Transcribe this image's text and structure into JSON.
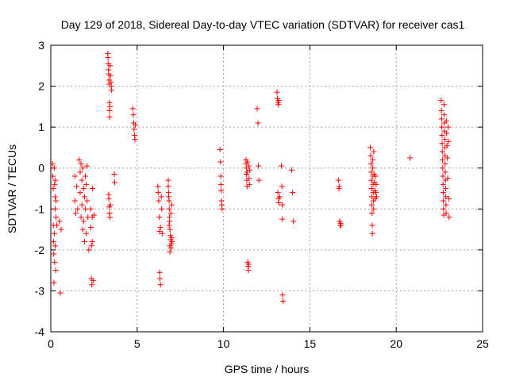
{
  "chart_data": {
    "type": "scatter",
    "title": "Day 129 of 2018, Sidereal Day-to-day VTEC variation (SDTVAR) for receiver cas1",
    "xlabel": "GPS time / hours",
    "ylabel": "SDTVAR / TECUs",
    "xlim": [
      0,
      25
    ],
    "ylim": [
      -4,
      3
    ],
    "xticks": [
      0,
      5,
      10,
      15,
      20,
      25
    ],
    "yticks": [
      -4,
      -3,
      -2,
      -1,
      0,
      1,
      2,
      3
    ],
    "grid": true,
    "marker": "+",
    "color": "#ff0000",
    "series": [
      {
        "name": "SDTVAR",
        "points": [
          [
            0.1,
            0.1
          ],
          [
            0.12,
            -0.2
          ],
          [
            0.14,
            -0.5
          ],
          [
            0.15,
            -1.4
          ],
          [
            0.15,
            -1.8
          ],
          [
            0.17,
            -2.1
          ],
          [
            0.18,
            -2.8
          ],
          [
            0.2,
            -1.6
          ],
          [
            0.2,
            0.0
          ],
          [
            0.22,
            -0.4
          ],
          [
            0.22,
            -2.3
          ],
          [
            0.25,
            -0.7
          ],
          [
            0.25,
            -1.0
          ],
          [
            0.25,
            -1.9
          ],
          [
            0.27,
            -0.3
          ],
          [
            0.28,
            -2.5
          ],
          [
            0.3,
            -0.8
          ],
          [
            0.3,
            -1.2
          ],
          [
            0.35,
            -1.4
          ],
          [
            0.5,
            -1.3
          ],
          [
            0.55,
            -3.05
          ],
          [
            0.6,
            -1.5
          ],
          [
            1.4,
            -0.2
          ],
          [
            1.4,
            -0.8
          ],
          [
            1.45,
            -1.1
          ],
          [
            1.5,
            -0.45
          ],
          [
            1.55,
            -1.0
          ],
          [
            1.65,
            0.2
          ],
          [
            1.7,
            -0.1
          ],
          [
            1.7,
            -0.6
          ],
          [
            1.75,
            -1.2
          ],
          [
            1.75,
            0.1
          ],
          [
            1.8,
            -0.3
          ],
          [
            1.8,
            -0.9
          ],
          [
            1.85,
            -1.5
          ],
          [
            1.85,
            0.0
          ],
          [
            1.9,
            -0.5
          ],
          [
            1.9,
            -1.3
          ],
          [
            1.95,
            -0.7
          ],
          [
            1.95,
            -1.8
          ],
          [
            2.0,
            -0.2
          ],
          [
            2.0,
            -1.0
          ],
          [
            2.05,
            -0.4
          ],
          [
            2.05,
            -1.6
          ],
          [
            2.1,
            0.05
          ],
          [
            2.1,
            -0.8
          ],
          [
            2.15,
            -1.2
          ],
          [
            2.2,
            -2.0
          ],
          [
            2.3,
            -1.0
          ],
          [
            2.32,
            -1.45
          ],
          [
            2.35,
            -1.9
          ],
          [
            2.35,
            -2.7
          ],
          [
            2.38,
            -2.85
          ],
          [
            2.4,
            -1.8
          ],
          [
            2.4,
            -1.2
          ],
          [
            2.42,
            -0.5
          ],
          [
            2.45,
            -2.75
          ],
          [
            2.5,
            -1.15
          ],
          [
            3.3,
            2.8
          ],
          [
            3.31,
            2.7
          ],
          [
            3.32,
            2.55
          ],
          [
            3.34,
            2.4
          ],
          [
            3.35,
            2.3
          ],
          [
            3.36,
            2.15
          ],
          [
            3.38,
            2.05
          ],
          [
            3.4,
            1.6
          ],
          [
            3.4,
            1.4
          ],
          [
            3.4,
            1.25
          ],
          [
            3.42,
            1.5
          ],
          [
            3.44,
            2.5
          ],
          [
            3.45,
            2.25
          ],
          [
            3.48,
            2.1
          ],
          [
            3.5,
            2.0
          ],
          [
            3.52,
            1.9
          ],
          [
            3.35,
            -0.65
          ],
          [
            3.36,
            -0.75
          ],
          [
            3.38,
            -0.95
          ],
          [
            3.4,
            -1.1
          ],
          [
            3.42,
            -1.2
          ],
          [
            3.45,
            -0.9
          ],
          [
            3.68,
            -0.15
          ],
          [
            3.7,
            -0.35
          ],
          [
            4.75,
            1.45
          ],
          [
            4.78,
            1.3
          ],
          [
            4.8,
            1.1
          ],
          [
            4.82,
            0.95
          ],
          [
            4.85,
            0.8
          ],
          [
            4.87,
            0.7
          ],
          [
            4.9,
            1.05
          ],
          [
            6.2,
            -0.45
          ],
          [
            6.22,
            -0.6
          ],
          [
            6.25,
            -0.8
          ],
          [
            6.28,
            -1.2
          ],
          [
            6.3,
            -1.55
          ],
          [
            6.3,
            -2.55
          ],
          [
            6.32,
            -2.7
          ],
          [
            6.35,
            -2.85
          ],
          [
            6.35,
            -1.45
          ],
          [
            6.4,
            -0.7
          ],
          [
            6.42,
            -1.0
          ],
          [
            6.45,
            -1.6
          ],
          [
            6.8,
            -0.3
          ],
          [
            6.8,
            -0.45
          ],
          [
            6.82,
            -0.6
          ],
          [
            6.83,
            -0.7
          ],
          [
            6.85,
            -0.8
          ],
          [
            6.85,
            -1.4
          ],
          [
            6.86,
            -1.0
          ],
          [
            6.87,
            -1.2
          ],
          [
            6.88,
            -1.3
          ],
          [
            6.89,
            -1.9
          ],
          [
            6.9,
            -1.5
          ],
          [
            6.9,
            -2.05
          ],
          [
            6.92,
            -1.65
          ],
          [
            6.94,
            -1.75
          ],
          [
            6.95,
            -1.1
          ],
          [
            6.96,
            -1.95
          ],
          [
            6.98,
            -1.85
          ],
          [
            7.0,
            -0.9
          ],
          [
            7.0,
            -1.7
          ],
          [
            7.02,
            -1.8
          ],
          [
            9.8,
            0.45
          ],
          [
            9.82,
            0.15
          ],
          [
            9.84,
            -0.2
          ],
          [
            9.85,
            -0.4
          ],
          [
            9.86,
            -0.55
          ],
          [
            9.88,
            -0.8
          ],
          [
            9.9,
            -0.9
          ],
          [
            9.92,
            -1.0
          ],
          [
            11.3,
            0.2
          ],
          [
            11.31,
            0.1
          ],
          [
            11.32,
            0.0
          ],
          [
            11.33,
            -0.15
          ],
          [
            11.35,
            -0.3
          ],
          [
            11.36,
            -0.45
          ],
          [
            11.37,
            -0.1
          ],
          [
            11.38,
            0.15
          ],
          [
            11.4,
            -2.3
          ],
          [
            11.42,
            -2.4
          ],
          [
            11.44,
            -2.5
          ],
          [
            11.45,
            -2.35
          ],
          [
            11.46,
            0.05
          ],
          [
            11.48,
            -0.25
          ],
          [
            11.5,
            -0.4
          ],
          [
            11.52,
            -0.05
          ],
          [
            11.95,
            1.45
          ],
          [
            12.0,
            1.1
          ],
          [
            12.02,
            0.05
          ],
          [
            12.05,
            -0.3
          ],
          [
            13.1,
            1.85
          ],
          [
            13.12,
            1.7
          ],
          [
            13.15,
            1.6
          ],
          [
            13.18,
            1.55
          ],
          [
            13.2,
            1.65
          ],
          [
            13.15,
            -0.6
          ],
          [
            13.18,
            -0.75
          ],
          [
            13.2,
            -0.85
          ],
          [
            13.25,
            -0.7
          ],
          [
            13.35,
            0.05
          ],
          [
            13.38,
            -0.45
          ],
          [
            13.4,
            -0.9
          ],
          [
            13.4,
            -1.25
          ],
          [
            13.42,
            -3.1
          ],
          [
            13.45,
            -3.25
          ],
          [
            13.95,
            -0.05
          ],
          [
            14.0,
            -0.6
          ],
          [
            14.05,
            -1.3
          ],
          [
            16.65,
            -0.3
          ],
          [
            16.68,
            -0.5
          ],
          [
            16.7,
            -0.45
          ],
          [
            16.72,
            -1.3
          ],
          [
            16.75,
            -1.4
          ],
          [
            16.78,
            -1.35
          ],
          [
            16.8,
            -1.4
          ],
          [
            18.5,
            0.5
          ],
          [
            18.52,
            0.3
          ],
          [
            18.54,
            0.1
          ],
          [
            18.55,
            -0.1
          ],
          [
            18.56,
            -0.3
          ],
          [
            18.57,
            -0.5
          ],
          [
            18.58,
            -0.7
          ],
          [
            18.59,
            -0.9
          ],
          [
            18.6,
            -1.1
          ],
          [
            18.61,
            -1.4
          ],
          [
            18.62,
            -1.6
          ],
          [
            18.63,
            0.2
          ],
          [
            18.64,
            0.0
          ],
          [
            18.65,
            -0.2
          ],
          [
            18.66,
            -0.4
          ],
          [
            18.67,
            -0.6
          ],
          [
            18.68,
            -0.8
          ],
          [
            18.69,
            -1.0
          ],
          [
            18.7,
            0.4
          ],
          [
            18.72,
            -0.15
          ],
          [
            18.74,
            -0.35
          ],
          [
            18.76,
            -0.55
          ],
          [
            18.78,
            -0.75
          ],
          [
            18.8,
            -0.2
          ],
          [
            18.82,
            -0.6
          ],
          [
            18.84,
            -0.4
          ],
          [
            18.86,
            -0.7
          ],
          [
            20.8,
            0.25
          ],
          [
            22.6,
            1.65
          ],
          [
            22.62,
            1.4
          ],
          [
            22.63,
            1.2
          ],
          [
            22.64,
            1.0
          ],
          [
            22.65,
            0.8
          ],
          [
            22.66,
            0.6
          ],
          [
            22.67,
            0.4
          ],
          [
            22.68,
            0.2
          ],
          [
            22.69,
            0.0
          ],
          [
            22.7,
            -0.2
          ],
          [
            22.71,
            -0.4
          ],
          [
            22.72,
            -0.6
          ],
          [
            22.73,
            -0.8
          ],
          [
            22.74,
            -1.0
          ],
          [
            22.75,
            -1.15
          ],
          [
            22.76,
            1.55
          ],
          [
            22.77,
            1.3
          ],
          [
            22.78,
            1.1
          ],
          [
            22.79,
            0.9
          ],
          [
            22.8,
            0.7
          ],
          [
            22.81,
            0.5
          ],
          [
            22.82,
            0.3
          ],
          [
            22.83,
            0.1
          ],
          [
            22.84,
            -0.1
          ],
          [
            22.85,
            -0.3
          ],
          [
            22.86,
            -0.5
          ],
          [
            22.87,
            -0.7
          ],
          [
            22.88,
            -0.9
          ],
          [
            22.89,
            -1.1
          ],
          [
            22.9,
            1.15
          ],
          [
            22.92,
            0.85
          ],
          [
            22.94,
            0.55
          ],
          [
            22.96,
            0.25
          ],
          [
            22.98,
            -0.25
          ],
          [
            23.0,
            1.0
          ],
          [
            23.02,
            0.65
          ],
          [
            23.04,
            -0.75
          ],
          [
            23.06,
            -1.2
          ]
        ]
      }
    ]
  }
}
